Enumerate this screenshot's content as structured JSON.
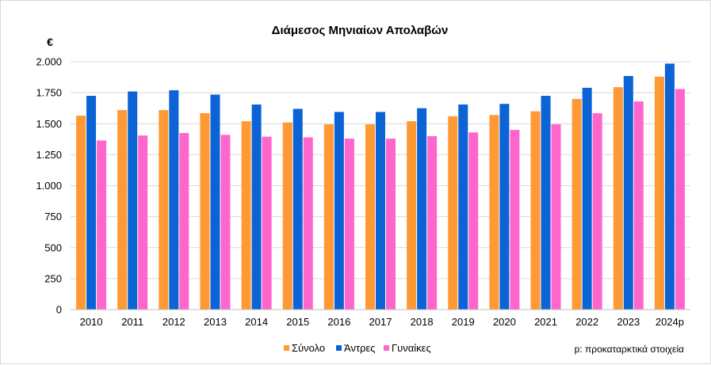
{
  "chart_data": {
    "type": "bar",
    "title": "Διάμεσος Μηνιαίων Απολαβών",
    "ylabel": "€",
    "xlabel": "",
    "ylim": [
      0,
      2000
    ],
    "yticks": [
      0,
      250,
      500,
      750,
      1000,
      1250,
      1500,
      1750,
      2000
    ],
    "ytick_labels": [
      "0",
      "250",
      "500",
      "750",
      "1.000",
      "1.250",
      "1.500",
      "1.750",
      "2.000"
    ],
    "grid": true,
    "legend_position": "bottom",
    "categories": [
      "2010",
      "2011",
      "2012",
      "2013",
      "2014",
      "2015",
      "2016",
      "2017",
      "2018",
      "2019",
      "2020",
      "2021",
      "2022",
      "2023",
      "2024p"
    ],
    "series": [
      {
        "name": "Σύνολο",
        "color": "#ff9933",
        "values": [
          1565,
          1610,
          1610,
          1585,
          1520,
          1510,
          1495,
          1495,
          1520,
          1560,
          1570,
          1600,
          1700,
          1795,
          1880
        ]
      },
      {
        "name": "Άντρες",
        "color": "#0b63d6",
        "values": [
          1725,
          1760,
          1770,
          1735,
          1655,
          1620,
          1595,
          1595,
          1625,
          1655,
          1660,
          1725,
          1790,
          1885,
          1985
        ]
      },
      {
        "name": "Γυναίκες",
        "color": "#ff66cc",
        "values": [
          1365,
          1405,
          1425,
          1410,
          1395,
          1390,
          1380,
          1380,
          1400,
          1430,
          1450,
          1495,
          1585,
          1680,
          1780
        ]
      }
    ],
    "note": "p: προκαταρκτικά στοιχεία"
  }
}
